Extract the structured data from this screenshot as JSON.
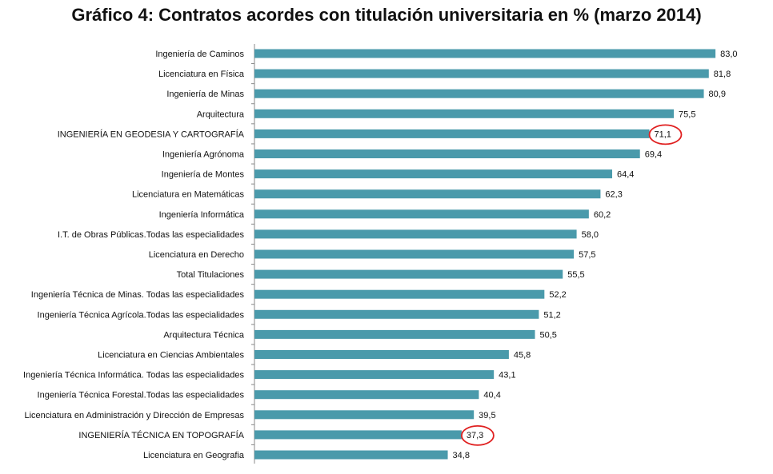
{
  "chart_data": {
    "type": "bar",
    "orientation": "horizontal",
    "title": "Gráfico 4: Contratos acordes con titulación universitaria en % (marzo 2014)",
    "xlim": [
      0,
      85
    ],
    "grid": false,
    "bar_color": "#4a9aab",
    "highlight_color": "#e02020",
    "categories": [
      "Ingeniería de Caminos",
      "Licenciatura  en Física",
      "Ingeniería de Minas",
      "Arquitectura",
      "INGENIERÍA  EN GEODESIA  Y CARTOGRAFÍA",
      "Ingeniería Agrónoma",
      "Ingeniería de Montes",
      "Licenciatura en Matemáticas",
      "Ingeniería Informática",
      "I.T. de Obras Públicas.Todas  las especialidades",
      "Licenciatura  en Derecho",
      "Total Titulaciones",
      "Ingeniería Técnica de Minas. Todas  las especialidades",
      "Ingeniería Técnica Agrícola.Todas las especialidades",
      "Arquitectura Técnica",
      "Licenciatura  en Ciencias Ambientales",
      "Ingeniería Técnica Informática.  Todas las especialidades",
      "Ingeniería Técnica Forestal.Todas las especialidades",
      "Licenciatura en Administración  y Dirección de Empresas",
      "INGENIERÍA  TÉCNICA  EN TOPOGRAFÍA",
      "Licenciatura en Geografia"
    ],
    "values": [
      83.0,
      81.8,
      80.9,
      75.5,
      71.1,
      69.4,
      64.4,
      62.3,
      60.2,
      58.0,
      57.5,
      55.5,
      52.2,
      51.2,
      50.5,
      45.8,
      43.1,
      40.4,
      39.5,
      37.3,
      34.8
    ],
    "value_labels": [
      "83,0",
      "81,8",
      "80,9",
      "75,5",
      "71,1",
      "69,4",
      "64,4",
      "62,3",
      "60,2",
      "58,0",
      "57,5",
      "55,5",
      "52,2",
      "51,2",
      "50,5",
      "45,8",
      "43,1",
      "40,4",
      "39,5",
      "37,3",
      "34,8"
    ],
    "highlighted": [
      "INGENIERÍA  EN GEODESIA  Y CARTOGRAFÍA",
      "INGENIERÍA  TÉCNICA  EN TOPOGRAFÍA"
    ]
  }
}
